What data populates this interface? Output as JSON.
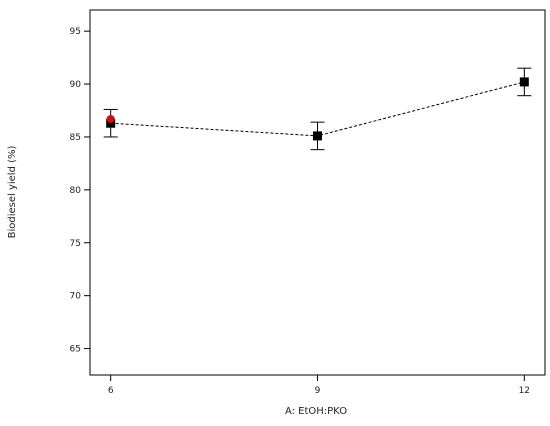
{
  "chart_data": {
    "type": "line",
    "title": "",
    "xlabel": "A: EtOH:PKO",
    "ylabel": "Biodiesel yield (%)",
    "x": [
      6,
      9,
      12
    ],
    "xlim": [
      5.7,
      12.3
    ],
    "ylim": [
      62.5,
      97.0
    ],
    "xticks": [
      "6",
      "9",
      "12"
    ],
    "yticks": [
      "65",
      "70",
      "75",
      "80",
      "85",
      "90",
      "95"
    ],
    "grid": false,
    "series": [
      {
        "values": [
          86.3,
          85.1,
          90.2
        ],
        "error_low": [
          85.0,
          83.8,
          88.9
        ],
        "error_high": [
          87.6,
          86.4,
          91.5
        ],
        "marker": "square",
        "line_style": "dashed",
        "color": "#000000"
      }
    ],
    "highlight_points": [
      {
        "x": 6,
        "y": 86.7,
        "color": "#cc1111"
      }
    ]
  }
}
